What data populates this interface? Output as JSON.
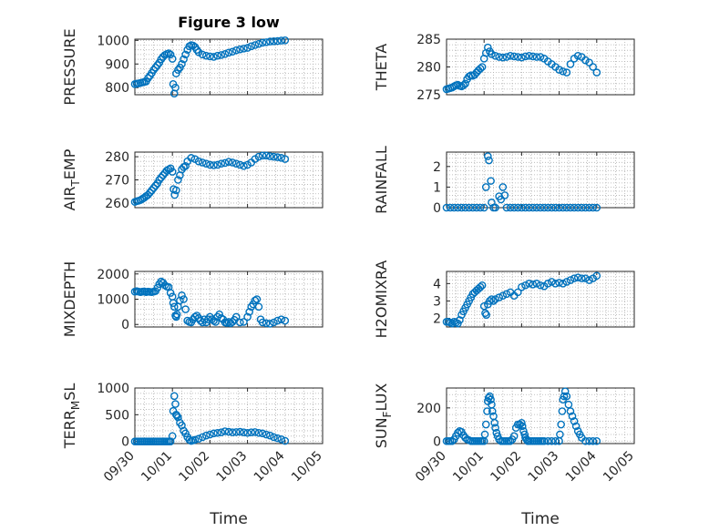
{
  "colors": {
    "marker": "#0072BD",
    "axis": "#262626",
    "grid": "#b0b0b0",
    "background": "#ffffff"
  },
  "chart_data": [
    {
      "type": "scatter",
      "title": "Figure 3 low",
      "ylabel": "PRESSURE",
      "xlabel": "",
      "xlim": [
        0,
        5
      ],
      "ylim": [
        770,
        1005
      ],
      "xticks": [
        0,
        1,
        2,
        3,
        4,
        5
      ],
      "yticks": [
        800,
        900,
        1000
      ],
      "ytick_labels": [
        "800",
        "900",
        "1000"
      ],
      "xtick_labels": [],
      "grid": true,
      "marker": "open-circle",
      "x": [
        0.0,
        0.05,
        0.1,
        0.15,
        0.2,
        0.25,
        0.3,
        0.35,
        0.4,
        0.45,
        0.5,
        0.55,
        0.6,
        0.65,
        0.7,
        0.75,
        0.8,
        0.85,
        0.9,
        0.95,
        1.0,
        1.02,
        1.05,
        1.08,
        1.1,
        1.15,
        1.2,
        1.25,
        1.3,
        1.35,
        1.4,
        1.45,
        1.5,
        1.55,
        1.6,
        1.65,
        1.7,
        1.8,
        1.9,
        2.0,
        2.1,
        2.2,
        2.3,
        2.4,
        2.5,
        2.6,
        2.7,
        2.8,
        2.9,
        3.0,
        3.1,
        3.2,
        3.3,
        3.4,
        3.5,
        3.6,
        3.7,
        3.8,
        3.9,
        4.0
      ],
      "y": [
        815,
        817,
        818,
        820,
        822,
        824,
        826,
        840,
        850,
        862,
        875,
        885,
        895,
        905,
        920,
        930,
        938,
        942,
        945,
        940,
        922,
        815,
        775,
        800,
        860,
        875,
        885,
        900,
        920,
        940,
        960,
        975,
        980,
        978,
        972,
        960,
        950,
        940,
        935,
        932,
        930,
        935,
        938,
        942,
        948,
        952,
        958,
        962,
        965,
        968,
        975,
        980,
        985,
        990,
        992,
        995,
        996,
        997,
        999,
        1000
      ]
    },
    {
      "type": "scatter",
      "ylabel": "THETA",
      "xlabel": "",
      "xlim": [
        0,
        5
      ],
      "ylim": [
        275,
        285
      ],
      "yticks": [
        275,
        280,
        285
      ],
      "ytick_labels": [
        "275",
        "280",
        "285"
      ],
      "xtick_labels": [],
      "grid": true,
      "marker": "open-circle",
      "x": [
        0.0,
        0.05,
        0.1,
        0.15,
        0.2,
        0.25,
        0.3,
        0.35,
        0.4,
        0.45,
        0.5,
        0.55,
        0.6,
        0.65,
        0.7,
        0.75,
        0.8,
        0.85,
        0.9,
        0.95,
        1.0,
        1.05,
        1.1,
        1.15,
        1.2,
        1.3,
        1.4,
        1.5,
        1.6,
        1.7,
        1.8,
        1.9,
        2.0,
        2.1,
        2.2,
        2.3,
        2.4,
        2.5,
        2.6,
        2.7,
        2.8,
        2.9,
        3.0,
        3.1,
        3.2,
        3.3,
        3.4,
        3.5,
        3.6,
        3.7,
        3.8,
        3.9,
        4.0
      ],
      "y": [
        276.0,
        276.1,
        276.2,
        276.3,
        276.5,
        276.7,
        276.8,
        276.6,
        276.5,
        276.7,
        277.0,
        277.8,
        278.3,
        278.5,
        278.4,
        278.6,
        279.0,
        279.4,
        279.7,
        280.0,
        281.5,
        282.5,
        283.5,
        282.8,
        282.3,
        282.0,
        281.8,
        281.7,
        281.8,
        282.0,
        281.9,
        281.8,
        281.7,
        281.9,
        282.0,
        281.9,
        281.8,
        281.8,
        281.5,
        281.0,
        280.5,
        280.0,
        279.5,
        279.2,
        279.0,
        280.5,
        281.5,
        282.0,
        281.8,
        281.2,
        280.8,
        280.0,
        279.0
      ]
    },
    {
      "type": "scatter",
      "ylabel_main": "AIR",
      "ylabel_sub": "T",
      "ylabel_rest": "EMP",
      "xlabel": "",
      "xlim": [
        0,
        5
      ],
      "ylim": [
        258,
        282
      ],
      "yticks": [
        260,
        270,
        280
      ],
      "ytick_labels": [
        "260",
        "270",
        "280"
      ],
      "xtick_labels": [],
      "grid": true,
      "marker": "open-circle",
      "x": [
        0.0,
        0.05,
        0.1,
        0.15,
        0.2,
        0.25,
        0.3,
        0.35,
        0.4,
        0.45,
        0.5,
        0.55,
        0.6,
        0.65,
        0.7,
        0.75,
        0.8,
        0.85,
        0.9,
        0.95,
        1.0,
        1.03,
        1.06,
        1.1,
        1.15,
        1.2,
        1.25,
        1.3,
        1.35,
        1.4,
        1.5,
        1.6,
        1.7,
        1.8,
        1.9,
        2.0,
        2.1,
        2.2,
        2.3,
        2.4,
        2.5,
        2.6,
        2.7,
        2.8,
        2.9,
        3.0,
        3.1,
        3.2,
        3.3,
        3.4,
        3.5,
        3.6,
        3.7,
        3.8,
        3.9,
        4.0
      ],
      "y": [
        260.5,
        260.8,
        261.0,
        261.3,
        261.8,
        262.3,
        263.0,
        263.5,
        264.5,
        265.5,
        266.5,
        267.5,
        268.5,
        270.0,
        271.0,
        272.0,
        273.0,
        274.0,
        274.5,
        275.0,
        273.5,
        266.0,
        263.5,
        265.5,
        270.0,
        272.0,
        274.5,
        275.5,
        276.0,
        278.0,
        279.5,
        279.0,
        278.0,
        277.5,
        277.0,
        276.5,
        276.3,
        276.5,
        277.0,
        277.3,
        277.8,
        277.5,
        277.0,
        276.5,
        276.0,
        276.5,
        277.5,
        279.0,
        280.0,
        280.5,
        280.5,
        280.2,
        280.0,
        279.8,
        279.5,
        279.0
      ]
    },
    {
      "type": "scatter",
      "ylabel": "RAINFALL",
      "xlabel": "",
      "xlim": [
        0,
        5
      ],
      "ylim": [
        0,
        2.7
      ],
      "yticks": [
        0,
        1,
        2
      ],
      "ytick_labels": [
        "0",
        "1",
        "2"
      ],
      "xtick_labels": [],
      "grid": true,
      "marker": "open-circle",
      "x": [
        0.0,
        0.1,
        0.2,
        0.3,
        0.4,
        0.5,
        0.6,
        0.7,
        0.8,
        0.9,
        1.0,
        1.05,
        1.1,
        1.13,
        1.18,
        1.2,
        1.25,
        1.3,
        1.4,
        1.45,
        1.5,
        1.55,
        1.6,
        1.7,
        1.8,
        1.9,
        2.0,
        2.1,
        2.2,
        2.3,
        2.4,
        2.5,
        2.6,
        2.7,
        2.8,
        2.9,
        3.0,
        3.1,
        3.2,
        3.3,
        3.4,
        3.5,
        3.6,
        3.7,
        3.8,
        3.9,
        4.0
      ],
      "y": [
        0,
        0,
        0,
        0,
        0,
        0,
        0,
        0,
        0,
        0,
        0,
        1.0,
        2.5,
        2.3,
        1.3,
        0.25,
        0,
        0,
        0.55,
        0.4,
        1.0,
        0.6,
        0,
        0,
        0,
        0,
        0,
        0,
        0,
        0,
        0,
        0,
        0,
        0,
        0,
        0,
        0,
        0,
        0,
        0,
        0,
        0,
        0,
        0,
        0,
        0,
        0
      ]
    },
    {
      "type": "scatter",
      "ylabel": "MIXDEPTH",
      "xlabel": "",
      "xlim": [
        0,
        5
      ],
      "ylim": [
        -100,
        2100
      ],
      "yticks": [
        0,
        1000,
        2000
      ],
      "ytick_labels": [
        "0",
        "1000",
        "2000"
      ],
      "xtick_labels": [],
      "grid": true,
      "marker": "open-circle",
      "x": [
        0.0,
        0.05,
        0.1,
        0.15,
        0.2,
        0.25,
        0.3,
        0.35,
        0.4,
        0.45,
        0.5,
        0.55,
        0.6,
        0.65,
        0.7,
        0.75,
        0.8,
        0.85,
        0.9,
        0.95,
        1.0,
        1.02,
        1.05,
        1.08,
        1.1,
        1.12,
        1.15,
        1.2,
        1.25,
        1.3,
        1.35,
        1.4,
        1.45,
        1.5,
        1.55,
        1.6,
        1.65,
        1.7,
        1.75,
        1.8,
        1.85,
        1.9,
        1.95,
        2.0,
        2.05,
        2.1,
        2.15,
        2.2,
        2.25,
        2.3,
        2.35,
        2.4,
        2.45,
        2.5,
        2.55,
        2.6,
        2.65,
        2.7,
        2.8,
        2.9,
        3.0,
        3.05,
        3.1,
        3.15,
        3.2,
        3.25,
        3.3,
        3.35,
        3.4,
        3.5,
        3.6,
        3.7,
        3.8,
        3.9,
        4.0
      ],
      "y": [
        1300,
        1320,
        1300,
        1280,
        1300,
        1310,
        1280,
        1300,
        1290,
        1280,
        1300,
        1320,
        1450,
        1600,
        1700,
        1650,
        1550,
        1500,
        1480,
        1250,
        1100,
        850,
        700,
        350,
        300,
        400,
        700,
        950,
        1150,
        1000,
        600,
        150,
        100,
        80,
        200,
        300,
        350,
        250,
        150,
        80,
        200,
        80,
        200,
        300,
        200,
        150,
        100,
        300,
        400,
        250,
        200,
        80,
        60,
        100,
        50,
        100,
        180,
        300,
        80,
        100,
        300,
        500,
        700,
        800,
        950,
        1000,
        700,
        200,
        80,
        50,
        30,
        80,
        150,
        200,
        150
      ]
    },
    {
      "type": "scatter",
      "ylabel": "H2OMIXRA",
      "xlabel": "",
      "xlim": [
        0,
        5
      ],
      "ylim": [
        1.5,
        4.7
      ],
      "yticks": [
        2,
        3,
        4
      ],
      "ytick_labels": [
        "2",
        "3",
        "4"
      ],
      "xtick_labels": [],
      "grid": true,
      "marker": "open-circle",
      "x": [
        0.0,
        0.05,
        0.1,
        0.15,
        0.2,
        0.25,
        0.3,
        0.35,
        0.4,
        0.45,
        0.5,
        0.55,
        0.6,
        0.65,
        0.7,
        0.75,
        0.8,
        0.85,
        0.9,
        0.95,
        1.0,
        1.03,
        1.06,
        1.1,
        1.15,
        1.2,
        1.25,
        1.3,
        1.4,
        1.5,
        1.6,
        1.7,
        1.8,
        1.9,
        2.0,
        2.1,
        2.2,
        2.3,
        2.4,
        2.5,
        2.6,
        2.7,
        2.8,
        2.9,
        3.0,
        3.1,
        3.2,
        3.3,
        3.4,
        3.5,
        3.6,
        3.7,
        3.8,
        3.9,
        4.0
      ],
      "y": [
        1.8,
        1.8,
        1.75,
        1.7,
        1.8,
        1.75,
        1.7,
        1.9,
        2.2,
        2.4,
        2.6,
        2.8,
        3.0,
        3.2,
        3.4,
        3.5,
        3.6,
        3.7,
        3.8,
        3.9,
        2.7,
        2.3,
        2.2,
        2.8,
        3.0,
        3.1,
        3.0,
        3.1,
        3.2,
        3.3,
        3.4,
        3.5,
        3.3,
        3.5,
        3.8,
        3.9,
        4.0,
        3.95,
        4.0,
        3.9,
        3.85,
        4.0,
        4.1,
        4.0,
        4.05,
        4.0,
        4.1,
        4.2,
        4.3,
        4.35,
        4.3,
        4.3,
        4.2,
        4.3,
        4.45
      ]
    },
    {
      "type": "scatter",
      "ylabel_main": "TERR",
      "ylabel_sub": "M",
      "ylabel_rest": "SL",
      "xlabel": "Time",
      "xlim": [
        0,
        5
      ],
      "ylim": [
        -40,
        1000
      ],
      "yticks": [
        0,
        500,
        1000
      ],
      "ytick_labels": [
        "0",
        "500",
        "1000"
      ],
      "xtick_labels": [
        "09/30",
        "10/01",
        "10/02",
        "10/03",
        "10/04",
        "10/05"
      ],
      "grid": true,
      "marker": "open-circle",
      "x": [
        0.0,
        0.05,
        0.1,
        0.15,
        0.2,
        0.25,
        0.3,
        0.35,
        0.4,
        0.45,
        0.5,
        0.55,
        0.6,
        0.65,
        0.7,
        0.75,
        0.8,
        0.85,
        0.9,
        0.95,
        1.0,
        1.02,
        1.05,
        1.08,
        1.1,
        1.12,
        1.15,
        1.2,
        1.25,
        1.3,
        1.35,
        1.4,
        1.45,
        1.5,
        1.55,
        1.6,
        1.7,
        1.8,
        1.9,
        2.0,
        2.1,
        2.2,
        2.3,
        2.4,
        2.5,
        2.6,
        2.7,
        2.8,
        2.9,
        3.0,
        3.1,
        3.2,
        3.3,
        3.4,
        3.5,
        3.6,
        3.7,
        3.8,
        3.9,
        4.0
      ],
      "y": [
        0,
        0,
        0,
        0,
        0,
        0,
        0,
        0,
        0,
        0,
        0,
        0,
        0,
        0,
        0,
        0,
        0,
        0,
        0,
        0,
        100,
        570,
        850,
        700,
        500,
        480,
        450,
        350,
        300,
        200,
        150,
        80,
        30,
        10,
        20,
        30,
        50,
        80,
        110,
        130,
        150,
        160,
        170,
        190,
        180,
        170,
        175,
        180,
        170,
        160,
        170,
        175,
        160,
        150,
        130,
        110,
        80,
        60,
        40,
        10
      ]
    },
    {
      "type": "scatter",
      "ylabel_main": "SUN",
      "ylabel_sub": "F",
      "ylabel_rest": "LUX",
      "xlabel": "Time",
      "xlim": [
        0,
        5
      ],
      "ylim": [
        -15,
        320
      ],
      "yticks": [
        0,
        200
      ],
      "ytick_labels": [
        "0",
        "200"
      ],
      "xtick_labels": [
        "09/30",
        "10/01",
        "10/02",
        "10/03",
        "10/04",
        "10/05"
      ],
      "grid": true,
      "marker": "open-circle",
      "x": [
        0.0,
        0.05,
        0.1,
        0.15,
        0.2,
        0.25,
        0.3,
        0.35,
        0.4,
        0.45,
        0.5,
        0.55,
        0.6,
        0.65,
        0.7,
        0.75,
        0.8,
        0.85,
        0.9,
        0.95,
        1.0,
        1.02,
        1.05,
        1.08,
        1.1,
        1.12,
        1.15,
        1.18,
        1.2,
        1.22,
        1.25,
        1.28,
        1.3,
        1.33,
        1.36,
        1.4,
        1.45,
        1.5,
        1.55,
        1.6,
        1.65,
        1.7,
        1.75,
        1.8,
        1.85,
        1.9,
        1.95,
        2.0,
        2.02,
        2.05,
        2.08,
        2.1,
        2.13,
        2.16,
        2.2,
        2.25,
        2.3,
        2.35,
        2.4,
        2.45,
        2.5,
        2.55,
        2.6,
        2.7,
        2.8,
        2.9,
        3.0,
        3.02,
        3.05,
        3.08,
        3.1,
        3.13,
        3.16,
        3.2,
        3.25,
        3.3,
        3.35,
        3.4,
        3.45,
        3.5,
        3.55,
        3.6,
        3.7,
        3.8,
        3.9,
        4.0
      ],
      "y": [
        0,
        0,
        0,
        0,
        10,
        30,
        50,
        60,
        55,
        35,
        20,
        10,
        5,
        0,
        0,
        0,
        0,
        0,
        0,
        0,
        0,
        40,
        100,
        180,
        240,
        260,
        270,
        250,
        220,
        180,
        150,
        110,
        80,
        50,
        30,
        10,
        0,
        0,
        0,
        0,
        0,
        0,
        10,
        30,
        80,
        100,
        100,
        110,
        90,
        60,
        40,
        20,
        10,
        0,
        0,
        0,
        0,
        0,
        0,
        0,
        0,
        0,
        0,
        0,
        0,
        0,
        0,
        40,
        100,
        180,
        250,
        270,
        300,
        270,
        220,
        180,
        150,
        120,
        90,
        60,
        40,
        20,
        0,
        0,
        0,
        0
      ]
    }
  ]
}
